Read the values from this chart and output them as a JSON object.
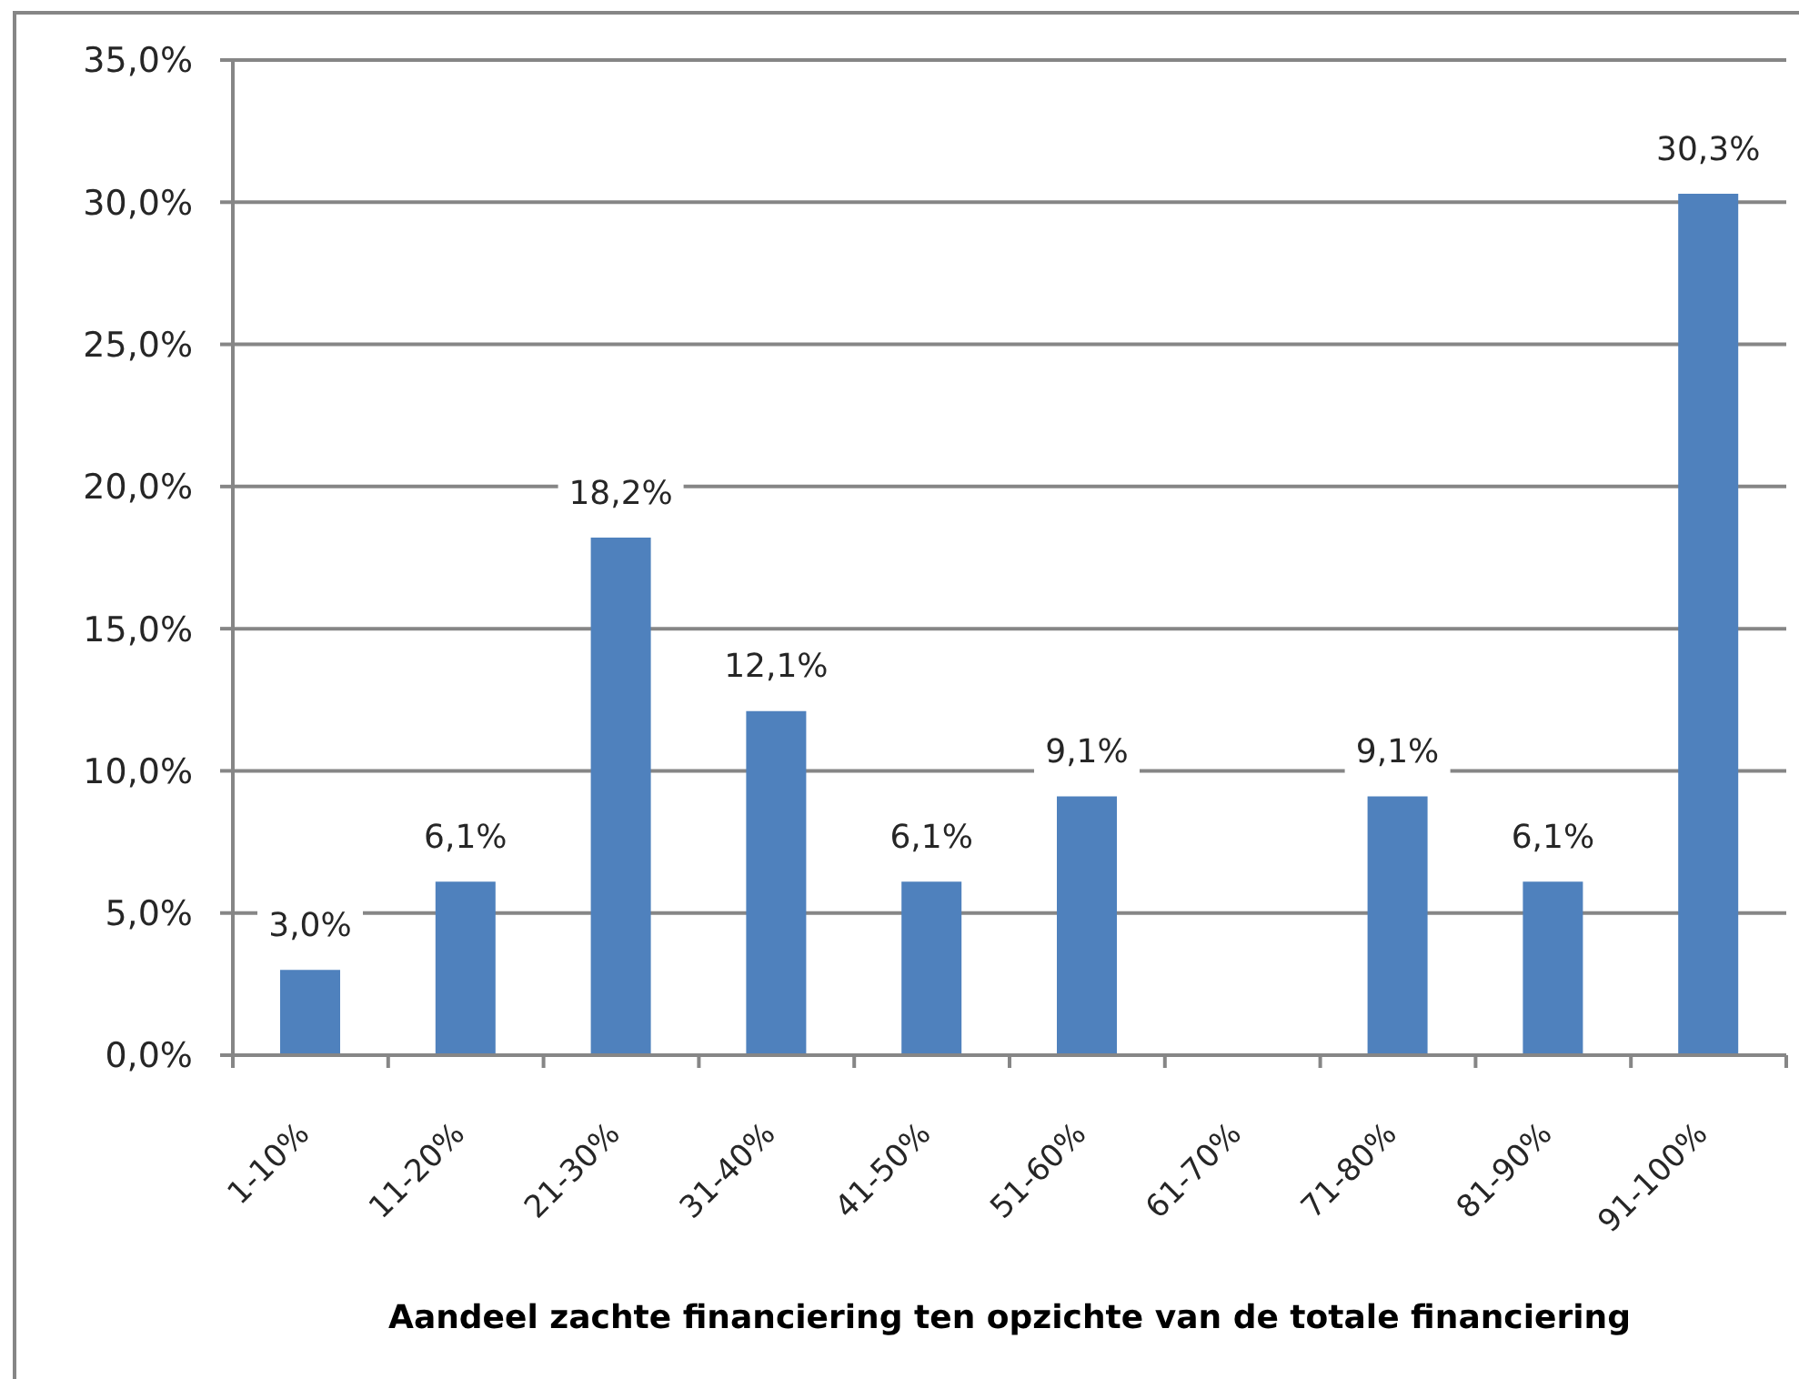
{
  "chart_data": {
    "type": "bar",
    "xlabel": "Aandeel zachte financiering ten opzichte van de totale financiering",
    "categories": [
      "1-10%",
      "11-20%",
      "21-30%",
      "31-40%",
      "41-50%",
      "51-60%",
      "61-70%",
      "71-80%",
      "81-90%",
      "91-100%"
    ],
    "values": [
      3.0,
      6.1,
      18.2,
      12.1,
      6.1,
      9.1,
      null,
      9.1,
      6.1,
      30.3
    ],
    "value_labels": [
      "3,0%",
      "6,1%",
      "18,2%",
      "12,1%",
      "6,1%",
      "9,1%",
      null,
      "9,1%",
      "6,1%",
      "30,3%"
    ],
    "color": "#4f81bd",
    "ylim": [
      0,
      35
    ],
    "yticks": [
      {
        "value": 0,
        "label": "0,0%"
      },
      {
        "value": 5,
        "label": "5,0%"
      },
      {
        "value": 10,
        "label": "10,0%"
      },
      {
        "value": 15,
        "label": "15,0%"
      },
      {
        "value": 20,
        "label": "20,0%"
      },
      {
        "value": 25,
        "label": "25,0%"
      },
      {
        "value": 30,
        "label": "30,0%"
      },
      {
        "value": 35,
        "label": "35,0%"
      }
    ],
    "grid": "y"
  }
}
